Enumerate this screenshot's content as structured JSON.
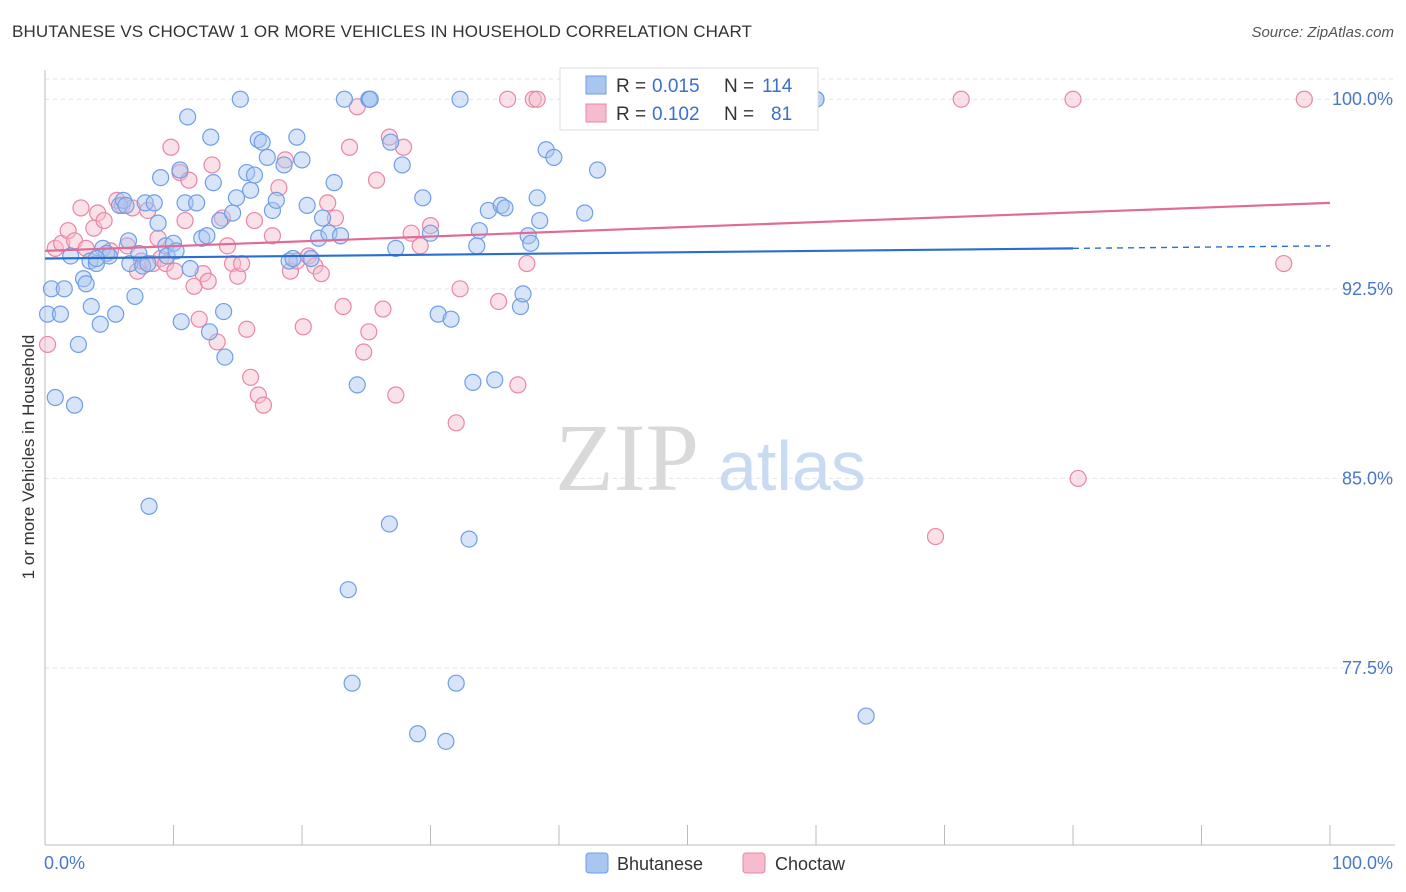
{
  "title": "BHUTANESE VS CHOCTAW 1 OR MORE VEHICLES IN HOUSEHOLD CORRELATION CHART",
  "source": "Source: ZipAtlas.com",
  "watermark": {
    "zip": "ZIP",
    "atlas": "atlas"
  },
  "chart_data": {
    "type": "scatter",
    "xlabel": "",
    "ylabel": "1 or more Vehicles in Household",
    "xlim": [
      0,
      100
    ],
    "ylim": [
      70.5,
      100.8
    ],
    "x_tick_labels": {
      "left": "0.0%",
      "right": "100.0%"
    },
    "y_ticks": [
      {
        "value": 100.0,
        "label": "100.0%"
      },
      {
        "value": 92.5,
        "label": "92.5%"
      },
      {
        "value": 85.0,
        "label": "85.0%"
      },
      {
        "value": 77.5,
        "label": "77.5%"
      }
    ],
    "legend": [
      {
        "name": "Bhutanese",
        "r_label": "R =",
        "r": "0.015",
        "n_label": "N =",
        "n": "114",
        "color": "#6f9ee8",
        "fill": "#a9c6f0"
      },
      {
        "name": "Choctaw",
        "r_label": "R =",
        "r": "0.102",
        "n_label": "N =",
        "n": "81",
        "color": "#e887a6",
        "fill": "#f5bccd"
      }
    ],
    "series": [
      {
        "name": "Bhutanese",
        "trend": {
          "x0": 0,
          "y0": 93.7,
          "x1": 80,
          "y1": 94.1,
          "dash_to": 100,
          "dash_y": 94.2,
          "color": "#2a6fcf"
        },
        "points": [
          [
            0.2,
            91.5
          ],
          [
            0.5,
            92.5
          ],
          [
            0.8,
            88.2
          ],
          [
            1.2,
            91.5
          ],
          [
            1.5,
            92.5
          ],
          [
            2.0,
            93.8
          ],
          [
            2.3,
            87.9
          ],
          [
            2.6,
            90.3
          ],
          [
            3.0,
            92.9
          ],
          [
            3.2,
            92.7
          ],
          [
            3.5,
            93.6
          ],
          [
            3.6,
            91.8
          ],
          [
            4.0,
            93.5
          ],
          [
            4.3,
            91.1
          ],
          [
            4.5,
            94.1
          ],
          [
            4.8,
            93.9
          ],
          [
            5.0,
            93.8
          ],
          [
            5.5,
            91.5
          ],
          [
            5.8,
            95.8
          ],
          [
            6.1,
            96.0
          ],
          [
            6.3,
            95.8
          ],
          [
            6.5,
            94.4
          ],
          [
            6.6,
            93.5
          ],
          [
            7.0,
            92.2
          ],
          [
            7.3,
            93.9
          ],
          [
            7.6,
            93.4
          ],
          [
            7.8,
            95.9
          ],
          [
            8.0,
            93.5
          ],
          [
            8.1,
            83.9
          ],
          [
            8.5,
            95.9
          ],
          [
            8.8,
            95.1
          ],
          [
            9.0,
            96.9
          ],
          [
            9.4,
            94.2
          ],
          [
            9.5,
            93.8
          ],
          [
            10.0,
            94.3
          ],
          [
            10.2,
            94.0
          ],
          [
            10.5,
            97.2
          ],
          [
            10.6,
            91.2
          ],
          [
            10.9,
            95.9
          ],
          [
            11.1,
            99.3
          ],
          [
            11.3,
            93.3
          ],
          [
            11.8,
            95.9
          ],
          [
            12.2,
            94.5
          ],
          [
            12.6,
            94.6
          ],
          [
            12.8,
            90.8
          ],
          [
            12.9,
            98.5
          ],
          [
            13.1,
            96.7
          ],
          [
            13.6,
            95.2
          ],
          [
            13.9,
            91.6
          ],
          [
            14.0,
            89.8
          ],
          [
            14.6,
            95.5
          ],
          [
            14.9,
            96.1
          ],
          [
            15.2,
            100.0
          ],
          [
            15.7,
            97.1
          ],
          [
            16.0,
            96.4
          ],
          [
            16.3,
            97.0
          ],
          [
            16.6,
            98.4
          ],
          [
            16.9,
            98.3
          ],
          [
            17.3,
            97.7
          ],
          [
            17.7,
            95.6
          ],
          [
            18.0,
            96.0
          ],
          [
            18.6,
            97.4
          ],
          [
            19.0,
            93.6
          ],
          [
            19.3,
            93.7
          ],
          [
            19.6,
            98.5
          ],
          [
            20.0,
            97.6
          ],
          [
            20.4,
            95.8
          ],
          [
            20.7,
            93.7
          ],
          [
            21.3,
            94.5
          ],
          [
            21.6,
            95.3
          ],
          [
            22.1,
            94.7
          ],
          [
            22.5,
            96.7
          ],
          [
            23.0,
            94.6
          ],
          [
            23.3,
            100.0
          ],
          [
            23.6,
            80.6
          ],
          [
            23.9,
            76.9
          ],
          [
            24.3,
            88.7
          ],
          [
            25.2,
            100.0
          ],
          [
            25.3,
            100.0
          ],
          [
            26.8,
            83.2
          ],
          [
            26.9,
            98.3
          ],
          [
            27.3,
            94.1
          ],
          [
            27.8,
            97.4
          ],
          [
            29.0,
            74.9
          ],
          [
            29.4,
            96.1
          ],
          [
            30.0,
            94.7
          ],
          [
            30.6,
            91.5
          ],
          [
            31.2,
            74.6
          ],
          [
            31.6,
            91.3
          ],
          [
            32.0,
            76.9
          ],
          [
            32.3,
            100.0
          ],
          [
            33.0,
            82.6
          ],
          [
            33.3,
            88.8
          ],
          [
            33.6,
            94.2
          ],
          [
            33.8,
            94.8
          ],
          [
            34.5,
            95.6
          ],
          [
            35.0,
            88.9
          ],
          [
            35.5,
            95.8
          ],
          [
            35.8,
            95.7
          ],
          [
            37.0,
            91.8
          ],
          [
            37.2,
            92.3
          ],
          [
            37.6,
            94.6
          ],
          [
            37.8,
            94.3
          ],
          [
            38.3,
            96.1
          ],
          [
            38.5,
            95.2
          ],
          [
            39.0,
            98.0
          ],
          [
            39.6,
            97.7
          ],
          [
            42.0,
            95.5
          ],
          [
            43.0,
            97.2
          ],
          [
            60.0,
            100.0
          ],
          [
            63.9,
            75.6
          ],
          [
            60.0,
            100.0
          ],
          [
            4.0,
            93.7
          ],
          [
            25.3,
            100.0
          ]
        ]
      },
      {
        "name": "Choctaw",
        "trend": {
          "x0": 0,
          "y0": 94.0,
          "x1": 100,
          "y1": 95.9,
          "color": "#e16a97"
        },
        "points": [
          [
            0.2,
            90.3
          ],
          [
            0.8,
            94.1
          ],
          [
            1.3,
            94.3
          ],
          [
            1.8,
            94.8
          ],
          [
            2.3,
            94.4
          ],
          [
            2.8,
            95.7
          ],
          [
            3.2,
            94.1
          ],
          [
            3.8,
            94.9
          ],
          [
            4.1,
            95.5
          ],
          [
            4.6,
            95.2
          ],
          [
            5.1,
            94.0
          ],
          [
            5.6,
            96.0
          ],
          [
            6.0,
            95.8
          ],
          [
            6.4,
            94.2
          ],
          [
            6.8,
            95.7
          ],
          [
            7.2,
            93.2
          ],
          [
            7.5,
            93.6
          ],
          [
            8.0,
            95.6
          ],
          [
            8.4,
            93.5
          ],
          [
            8.8,
            94.5
          ],
          [
            9.0,
            93.7
          ],
          [
            9.4,
            93.5
          ],
          [
            9.8,
            98.1
          ],
          [
            10.1,
            93.2
          ],
          [
            10.5,
            97.1
          ],
          [
            10.9,
            95.2
          ],
          [
            11.2,
            96.8
          ],
          [
            11.6,
            92.6
          ],
          [
            12.0,
            91.3
          ],
          [
            12.3,
            93.1
          ],
          [
            12.7,
            92.8
          ],
          [
            13.0,
            97.4
          ],
          [
            13.4,
            90.4
          ],
          [
            13.8,
            95.3
          ],
          [
            14.2,
            94.2
          ],
          [
            14.6,
            93.5
          ],
          [
            15.0,
            93.0
          ],
          [
            15.3,
            93.5
          ],
          [
            15.7,
            90.9
          ],
          [
            16.0,
            89.0
          ],
          [
            16.3,
            95.2
          ],
          [
            16.6,
            88.3
          ],
          [
            17.0,
            87.9
          ],
          [
            17.7,
            94.6
          ],
          [
            18.2,
            96.5
          ],
          [
            18.7,
            97.6
          ],
          [
            19.1,
            93.2
          ],
          [
            19.6,
            93.6
          ],
          [
            20.1,
            91.0
          ],
          [
            20.5,
            93.8
          ],
          [
            21.0,
            93.4
          ],
          [
            21.5,
            93.1
          ],
          [
            22.0,
            95.9
          ],
          [
            22.6,
            95.3
          ],
          [
            23.2,
            91.8
          ],
          [
            23.7,
            98.1
          ],
          [
            24.3,
            99.7
          ],
          [
            24.8,
            90.0
          ],
          [
            25.2,
            90.8
          ],
          [
            25.8,
            96.8
          ],
          [
            26.3,
            91.7
          ],
          [
            26.8,
            98.5
          ],
          [
            27.3,
            88.3
          ],
          [
            27.9,
            98.1
          ],
          [
            28.5,
            94.7
          ],
          [
            29.2,
            94.2
          ],
          [
            30.0,
            95.0
          ],
          [
            32.0,
            87.2
          ],
          [
            32.3,
            92.5
          ],
          [
            35.3,
            92.0
          ],
          [
            36.0,
            100.0
          ],
          [
            36.8,
            88.7
          ],
          [
            37.5,
            93.5
          ],
          [
            38.0,
            100.0
          ],
          [
            69.3,
            82.7
          ],
          [
            71.3,
            100.0
          ],
          [
            80.0,
            100.0
          ],
          [
            80.4,
            85.0
          ],
          [
            96.4,
            93.5
          ],
          [
            98.0,
            100.0
          ],
          [
            38.3,
            100.0
          ]
        ]
      }
    ]
  }
}
